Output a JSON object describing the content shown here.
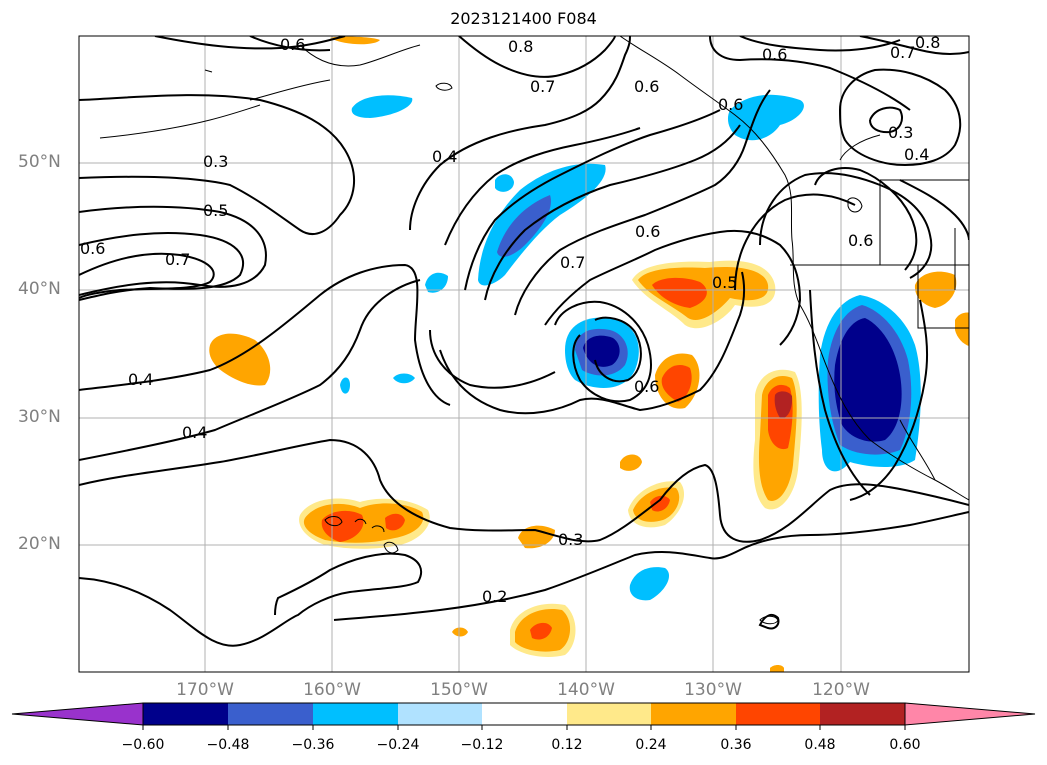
{
  "title": "2023121400 F084",
  "lat_labels": [
    "50°N",
    "40°N",
    "30°N",
    "20°N"
  ],
  "lon_labels": [
    "170°W",
    "160°W",
    "150°W",
    "140°W",
    "130°W",
    "120°W"
  ],
  "contour_labels": [
    "0.6",
    "0.8",
    "0.7",
    "0.6",
    "0.6",
    "0.7",
    "0.8",
    "0.3",
    "0.4",
    "0.4",
    "0.3",
    "0.5",
    "0.6",
    "0.7",
    "0.6",
    "0.7",
    "0.6",
    "0.6",
    "0.5",
    "0.4",
    "0.4",
    "0.6",
    "0.3",
    "0.2"
  ],
  "colorbar": {
    "ticks": [
      "−0.60",
      "−0.48",
      "−0.36",
      "−0.24",
      "−0.12",
      "0.12",
      "0.24",
      "0.36",
      "0.48",
      "0.60"
    ],
    "colors": {
      "below_min": "#9932cc",
      "bins": [
        "#00008b",
        "#3a5fcd",
        "#00bfff",
        "#b0e2ff",
        "#ffffff",
        "#ffe98a",
        "#ffa500",
        "#ff4500",
        "#b22222"
      ],
      "above_max": "#ff86a8"
    }
  }
}
